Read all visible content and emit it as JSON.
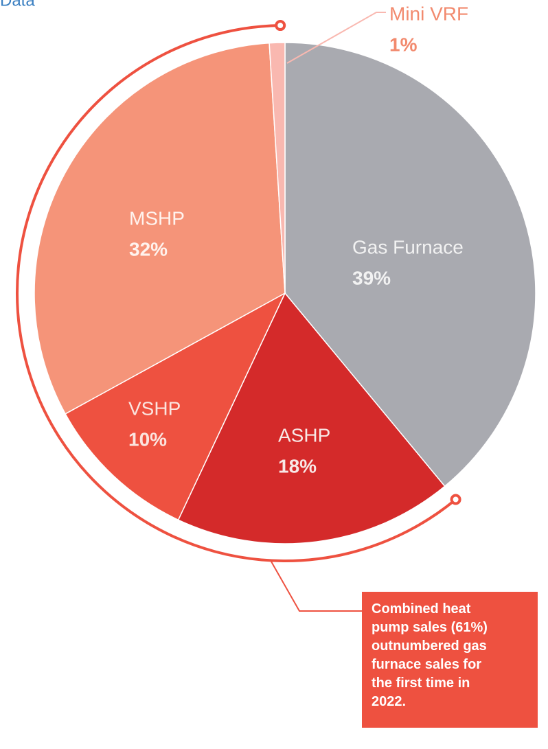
{
  "chart_data": {
    "type": "pie",
    "title": "Data",
    "categories": [
      "Gas Furnace",
      "ASHP",
      "VSHP",
      "MSHP",
      "Mini VRF"
    ],
    "values": [
      39,
      18,
      10,
      32,
      1
    ],
    "value_labels": [
      "39%",
      "18%",
      "10%",
      "32%",
      "1%"
    ],
    "colors": [
      "#a9aab0",
      "#d42a2a",
      "#ee5140",
      "#f59479",
      "#f9b8b0"
    ],
    "annotation": [
      "Combined heat",
      "pump sales (61%)",
      "outnumbered gas",
      "furnace sales for",
      "the first time in",
      "2022."
    ]
  }
}
